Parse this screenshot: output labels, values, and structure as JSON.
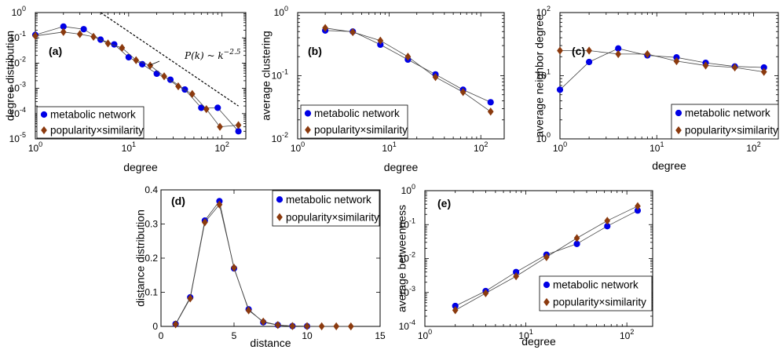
{
  "colors": {
    "metabolic": "#0000e6",
    "similarity": "#8b3a0e",
    "line": "#444444"
  },
  "chart_data": [
    {
      "id": "a",
      "type": "line",
      "panel_label": "(a)",
      "xlabel": "degree",
      "ylabel": "degree distribution",
      "xscale": "log",
      "yscale": "log",
      "xlim": [
        1,
        180
      ],
      "ylim": [
        1e-05,
        1
      ],
      "xticks": [
        1,
        10,
        100
      ],
      "xtick_labels": [
        "10",
        "10",
        "10"
      ],
      "xtick_exps": [
        "0",
        "1",
        "2"
      ],
      "yticks": [
        1e-05,
        0.0001,
        0.001,
        0.01,
        0.1,
        1
      ],
      "ytick_labels": [
        "10",
        "10",
        "10",
        "10",
        "10",
        "10"
      ],
      "ytick_exps": [
        "-5",
        "-4",
        "-3",
        "-2",
        "-1",
        "0"
      ],
      "legend": {
        "position": "bottom-left",
        "entries": [
          "metabolic network",
          "popularity×similarity"
        ]
      },
      "annotation": {
        "text": "P(k) ~ k",
        "exp": "−2.5"
      },
      "series": [
        {
          "name": "metabolic network",
          "marker": "circle",
          "x": [
            1,
            2,
            3.3,
            5,
            7,
            10,
            14,
            20,
            28,
            40,
            60,
            90,
            150
          ],
          "y": [
            0.13,
            0.28,
            0.22,
            0.085,
            0.055,
            0.017,
            0.009,
            0.0038,
            0.0022,
            0.0009,
            0.00017,
            0.00017,
            2e-05
          ]
        },
        {
          "name": "popularity×similarity",
          "marker": "diamond",
          "x": [
            1,
            2,
            3,
            4.2,
            6,
            8.5,
            12,
            17,
            24,
            34,
            48,
            68,
            95,
            150
          ],
          "y": [
            0.12,
            0.17,
            0.14,
            0.11,
            0.06,
            0.04,
            0.013,
            0.008,
            0.003,
            0.0012,
            0.0006,
            0.00015,
            3e-05,
            3.5e-05
          ]
        },
        {
          "name": "",
          "marker": "none",
          "style": "dashed",
          "x": [
            5,
            150
          ],
          "y": [
            1,
            0.0002
          ]
        }
      ]
    },
    {
      "id": "b",
      "type": "line",
      "panel_label": "(b)",
      "xlabel": "degree",
      "ylabel": "average clustering",
      "xscale": "log",
      "yscale": "log",
      "xlim": [
        1,
        180
      ],
      "ylim": [
        0.01,
        1
      ],
      "xticks": [
        1,
        10,
        100
      ],
      "xtick_labels": [
        "10",
        "10",
        "10"
      ],
      "xtick_exps": [
        "0",
        "1",
        "2"
      ],
      "yticks": [
        0.01,
        0.1,
        1
      ],
      "ytick_labels": [
        "10",
        "10",
        "10"
      ],
      "ytick_exps": [
        "-2",
        "-1",
        "0"
      ],
      "legend": {
        "position": "bottom-right",
        "entries": [
          "metabolic network",
          "popularity×similarity"
        ]
      },
      "series": [
        {
          "name": "metabolic network",
          "marker": "circle",
          "x": [
            2,
            4,
            8,
            16,
            32,
            64,
            128
          ],
          "y": [
            0.52,
            0.5,
            0.31,
            0.18,
            0.105,
            0.06,
            0.038
          ]
        },
        {
          "name": "popularity×similarity",
          "marker": "diamond",
          "x": [
            2,
            4,
            8,
            16,
            32,
            64,
            128
          ],
          "y": [
            0.57,
            0.49,
            0.36,
            0.2,
            0.095,
            0.055,
            0.027
          ]
        }
      ]
    },
    {
      "id": "c",
      "type": "line",
      "panel_label": "(c)",
      "xlabel": "degree",
      "ylabel": "average neighbor degree",
      "xscale": "log",
      "yscale": "log",
      "xlim": [
        1,
        180
      ],
      "ylim": [
        1,
        100
      ],
      "xticks": [
        1,
        10,
        100
      ],
      "xtick_labels": [
        "10",
        "10",
        "10"
      ],
      "xtick_exps": [
        "0",
        "1",
        "2"
      ],
      "yticks": [
        1,
        10,
        100
      ],
      "ytick_labels": [
        "10",
        "10",
        "10"
      ],
      "ytick_exps": [
        "0",
        "1",
        "2"
      ],
      "legend": {
        "position": "bottom-right",
        "entries": [
          "metabolic network",
          "popularity×similarity"
        ]
      },
      "series": [
        {
          "name": "metabolic network",
          "marker": "circle",
          "x": [
            1,
            2,
            4,
            8,
            16,
            32,
            64,
            128
          ],
          "y": [
            6,
            16.5,
            27,
            21,
            19.5,
            16,
            14,
            13.5
          ]
        },
        {
          "name": "popularity×similarity",
          "marker": "diamond",
          "x": [
            1,
            2,
            4,
            8,
            16,
            32,
            64,
            128
          ],
          "y": [
            25,
            25,
            22,
            22,
            17,
            14.5,
            13.5,
            11.5
          ]
        }
      ]
    },
    {
      "id": "d",
      "type": "line",
      "panel_label": "(d)",
      "xlabel": "distance",
      "ylabel": "distance distribution",
      "xscale": "linear",
      "yscale": "linear",
      "xlim": [
        0,
        15
      ],
      "ylim": [
        0,
        0.4
      ],
      "xticks": [
        0,
        5,
        10,
        15
      ],
      "xtick_labels": [
        "0",
        "5",
        "10",
        "15"
      ],
      "xtick_exps": [
        "",
        "",
        "",
        ""
      ],
      "yticks": [
        0,
        0.1,
        0.2,
        0.3,
        0.4
      ],
      "ytick_labels": [
        "0",
        "0.1",
        "0.2",
        "0.3",
        "0.4"
      ],
      "ytick_exps": [
        "",
        "",
        "",
        "",
        ""
      ],
      "legend": {
        "position": "top-right",
        "entries": [
          "metabolic network",
          "popularity×similarity"
        ]
      },
      "series": [
        {
          "name": "metabolic network",
          "marker": "circle",
          "x": [
            1,
            2,
            3,
            4,
            5,
            6,
            7,
            8,
            9,
            10
          ],
          "y": [
            0.007,
            0.085,
            0.31,
            0.367,
            0.17,
            0.05,
            0.012,
            0.004,
            0.001,
            0.0005
          ]
        },
        {
          "name": "popularity×similarity",
          "marker": "diamond",
          "x": [
            1,
            2,
            3,
            4,
            5,
            6,
            7,
            8,
            9,
            10,
            11,
            12,
            13
          ],
          "y": [
            0.006,
            0.082,
            0.305,
            0.357,
            0.172,
            0.047,
            0.014,
            0.004,
            0.001,
            0.0005,
            0.0003,
            0.0002,
            0.0001
          ]
        }
      ]
    },
    {
      "id": "e",
      "type": "line",
      "panel_label": "(e)",
      "xlabel": "degree",
      "ylabel": "average betweenness",
      "xscale": "log",
      "yscale": "log",
      "xlim": [
        1,
        180
      ],
      "ylim": [
        0.0001,
        1
      ],
      "xticks": [
        1,
        10,
        100
      ],
      "xtick_labels": [
        "10",
        "10",
        "10"
      ],
      "xtick_exps": [
        "0",
        "1",
        "2"
      ],
      "yticks": [
        0.0001,
        0.001,
        0.01,
        0.1,
        1
      ],
      "ytick_labels": [
        "10",
        "10",
        "10",
        "10",
        "10"
      ],
      "ytick_exps": [
        "-4",
        "-3",
        "-2",
        "-1",
        "0"
      ],
      "legend": {
        "position": "bottom-right",
        "entries": [
          "metabolic network",
          "popularity×similarity"
        ]
      },
      "series": [
        {
          "name": "metabolic network",
          "marker": "circle",
          "x": [
            2,
            4,
            8,
            16,
            32,
            64,
            128
          ],
          "y": [
            0.0004,
            0.0011,
            0.004,
            0.013,
            0.027,
            0.09,
            0.26
          ]
        },
        {
          "name": "popularity×similarity",
          "marker": "diamond",
          "x": [
            2,
            4,
            8,
            16,
            32,
            64,
            128
          ],
          "y": [
            0.0003,
            0.00095,
            0.003,
            0.011,
            0.04,
            0.13,
            0.35
          ]
        }
      ]
    }
  ]
}
